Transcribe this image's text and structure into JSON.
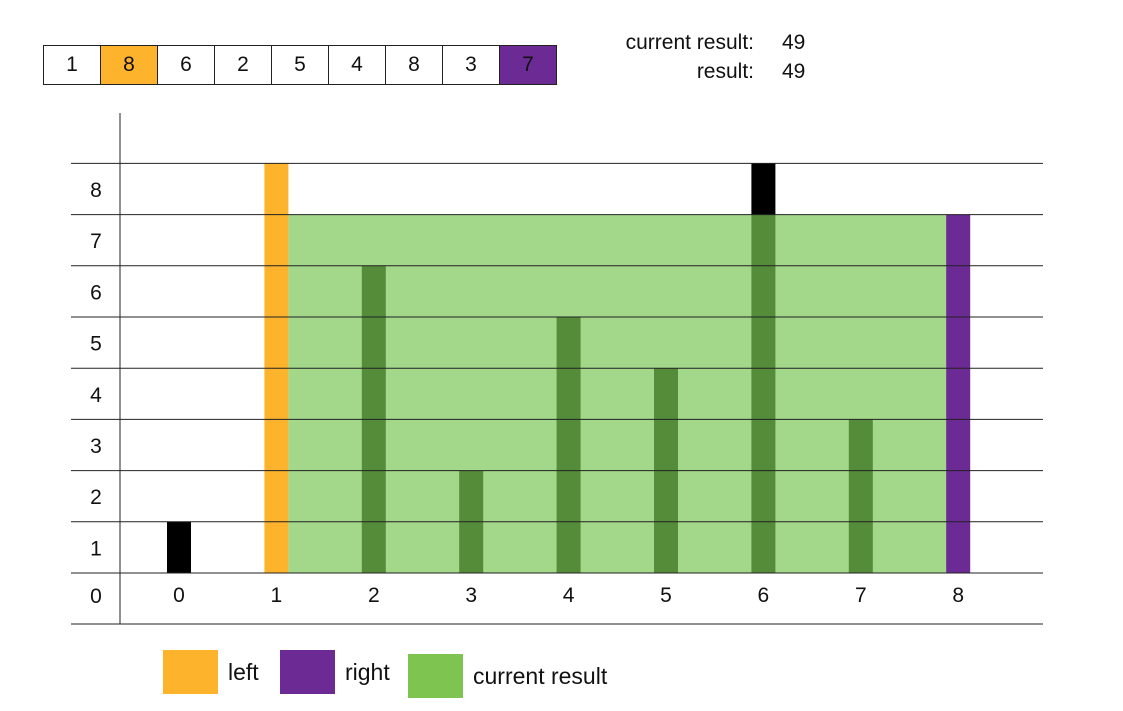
{
  "array": [
    1,
    8,
    6,
    2,
    5,
    4,
    8,
    3,
    7
  ],
  "left_index": 1,
  "right_index": 8,
  "stats": {
    "current_label": "current result:",
    "current_value": "49",
    "result_label": "result:",
    "result_value": "49"
  },
  "colors": {
    "left": "#FDB32C",
    "right": "#6B2A94",
    "area": "#A3D78A",
    "inner_bar": "#548C3A",
    "outer_bar": "#000000",
    "legend_area": "#7DC450"
  },
  "chart_data": {
    "type": "bar",
    "categories": [
      "0",
      "1",
      "2",
      "3",
      "4",
      "5",
      "6",
      "7",
      "8"
    ],
    "values": [
      1,
      8,
      6,
      2,
      5,
      4,
      8,
      3,
      7
    ],
    "y_ticks": [
      "0",
      "1",
      "2",
      "3",
      "4",
      "5",
      "6",
      "7",
      "8"
    ],
    "ylim": [
      0,
      8
    ],
    "area": {
      "x_from": 1,
      "x_to": 8,
      "height": 7
    }
  },
  "legend": [
    {
      "label": "left",
      "color_key": "left"
    },
    {
      "label": "right",
      "color_key": "right"
    },
    {
      "label": "current result",
      "color_key": "legend_area"
    }
  ]
}
